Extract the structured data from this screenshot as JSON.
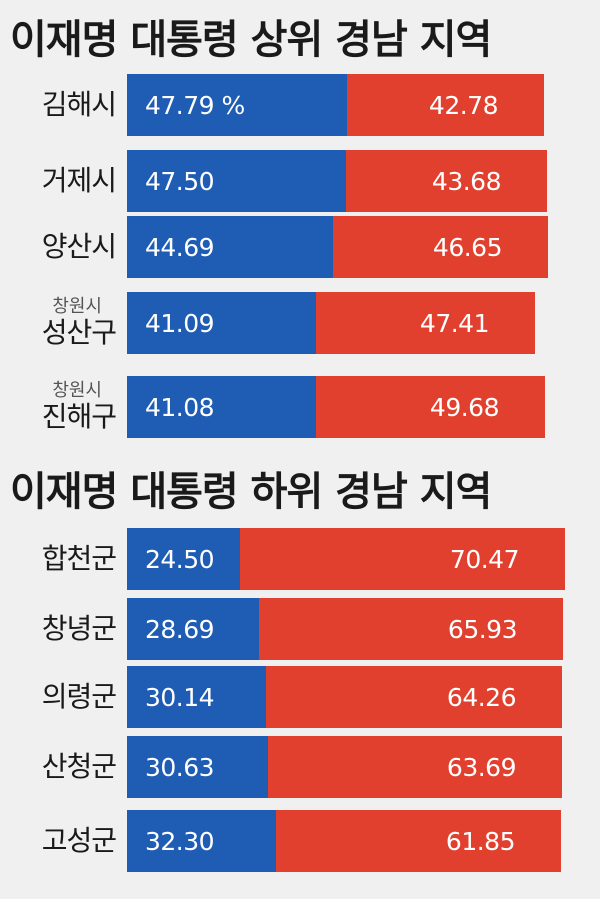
{
  "chart_data": [
    {
      "type": "bar",
      "title": "이재명 대통령 상위 경남 지역",
      "categories": [
        {
          "sub": "",
          "name": "김해시"
        },
        {
          "sub": "",
          "name": "거제시"
        },
        {
          "sub": "",
          "name": "양산시"
        },
        {
          "sub": "창원시",
          "name": "성산구"
        },
        {
          "sub": "창원시",
          "name": "진해구"
        }
      ],
      "series": [
        {
          "values": [
            47.79,
            47.5,
            44.69,
            41.09,
            41.08
          ],
          "labels": [
            "47.79 %",
            "47.50",
            "44.69",
            "41.09",
            "41.08"
          ],
          "color": "#1f5db4"
        },
        {
          "values": [
            42.78,
            43.68,
            46.65,
            47.41,
            49.68
          ],
          "labels": [
            "42.78",
            "43.68",
            "46.65",
            "47.41",
            "49.68"
          ],
          "color": "#e2402f"
        }
      ]
    },
    {
      "type": "bar",
      "title": "이재명 대통령 하위 경남 지역",
      "categories": [
        {
          "sub": "",
          "name": "합천군"
        },
        {
          "sub": "",
          "name": "창녕군"
        },
        {
          "sub": "",
          "name": "의령군"
        },
        {
          "sub": "",
          "name": "산청군"
        },
        {
          "sub": "",
          "name": "고성군"
        }
      ],
      "series": [
        {
          "values": [
            24.5,
            28.69,
            30.14,
            30.63,
            32.3
          ],
          "labels": [
            "24.50",
            "28.69",
            "30.14",
            "30.63",
            "32.30"
          ],
          "color": "#1f5db4"
        },
        {
          "values": [
            70.47,
            65.93,
            64.26,
            63.69,
            61.85
          ],
          "labels": [
            "70.47",
            "65.93",
            "64.26",
            "63.69",
            "61.85"
          ],
          "color": "#e2402f"
        }
      ]
    }
  ]
}
